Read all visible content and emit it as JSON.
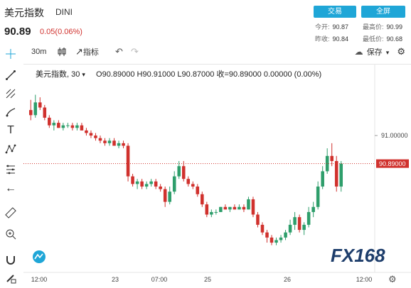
{
  "header": {
    "title": "美元指数",
    "code": "DINI",
    "price": "90.89",
    "change": "0.05(0.06%)",
    "trade_btn": "交易",
    "fullscreen_btn": "全屏",
    "stats": {
      "open_label": "今开:",
      "open": "90.87",
      "high_label": "最高价:",
      "high": "90.99",
      "prev_label": "昨收:",
      "prev": "90.84",
      "low_label": "最低价:",
      "low": "90.68"
    }
  },
  "toolbar": {
    "interval": "30m",
    "indicators": "指标",
    "save": "保存"
  },
  "legend": {
    "symbol": "美元指数, 30",
    "open": "O90.89000",
    "high": "H90.91000",
    "low": "L90.87000",
    "close": "收=90.89000",
    "chg": "0.00000 (0.00%)"
  },
  "icons": [
    "crosshair-icon",
    "line-icon",
    "pitchfork-icon",
    "brush-icon",
    "text-icon",
    "pattern-icon",
    "measure-icon",
    "back-arrow-icon",
    "ruler-icon",
    "zoom-in-icon",
    "magnet-icon",
    "pencil-lock-icon",
    "cloud-icon",
    "candles-icon",
    "undo-icon",
    "redo-icon",
    "gear-icon"
  ],
  "colors": {
    "up": "#2e9e6b",
    "down": "#d0312d",
    "accent": "#1fa6d7",
    "price_line": "#d0312d"
  },
  "watermark": "FX168",
  "chart_data": {
    "type": "candlestick",
    "title": "",
    "y_axis_label": "91.00000",
    "y_axis_value": 91.0,
    "last_price_label": "90.89000",
    "last_price": 90.89,
    "x_ticks": [
      "12:00",
      "23",
      "07:00",
      "25",
      "26",
      "12:00"
    ],
    "ylim": [
      90.48,
      91.22
    ],
    "series": [
      {
        "type": "candles",
        "values": [
          [
            91.1,
            91.14,
            91.06,
            91.08
          ],
          [
            91.08,
            91.16,
            91.07,
            91.13
          ],
          [
            91.13,
            91.15,
            91.1,
            91.11
          ],
          [
            91.11,
            91.12,
            91.06,
            91.07
          ],
          [
            91.07,
            91.08,
            91.03,
            91.04
          ],
          [
            91.04,
            91.06,
            91.02,
            91.05
          ],
          [
            91.05,
            91.06,
            91.03,
            91.03
          ],
          [
            91.03,
            91.05,
            91.02,
            91.04
          ],
          [
            91.04,
            91.05,
            91.03,
            91.04
          ],
          [
            91.04,
            91.05,
            91.02,
            91.03
          ],
          [
            91.03,
            91.05,
            91.02,
            91.04
          ],
          [
            91.04,
            91.05,
            91.02,
            91.02
          ],
          [
            91.02,
            91.03,
            91.0,
            91.01
          ],
          [
            91.01,
            91.02,
            90.99,
            91.0
          ],
          [
            91.0,
            91.01,
            90.98,
            90.99
          ],
          [
            90.99,
            91.0,
            90.97,
            90.98
          ],
          [
            90.98,
            90.99,
            90.96,
            90.97
          ],
          [
            90.97,
            90.99,
            90.96,
            90.98
          ],
          [
            90.98,
            90.99,
            90.96,
            90.96
          ],
          [
            90.96,
            90.98,
            90.95,
            90.97
          ],
          [
            90.97,
            90.98,
            90.95,
            90.96
          ],
          [
            90.96,
            90.97,
            90.82,
            90.84
          ],
          [
            90.84,
            90.85,
            90.8,
            90.81
          ],
          [
            90.81,
            90.83,
            90.79,
            90.82
          ],
          [
            90.82,
            90.83,
            90.79,
            90.8
          ],
          [
            90.8,
            90.82,
            90.79,
            90.81
          ],
          [
            90.81,
            90.83,
            90.8,
            90.82
          ],
          [
            90.82,
            90.83,
            90.79,
            90.8
          ],
          [
            90.8,
            90.81,
            90.78,
            90.79
          ],
          [
            90.79,
            90.8,
            90.72,
            90.74
          ],
          [
            90.74,
            90.8,
            90.73,
            90.78
          ],
          [
            90.78,
            90.86,
            90.77,
            90.84
          ],
          [
            90.84,
            90.9,
            90.83,
            90.88
          ],
          [
            90.88,
            90.9,
            90.82,
            90.83
          ],
          [
            90.83,
            90.84,
            90.8,
            90.81
          ],
          [
            90.81,
            90.82,
            90.79,
            90.8
          ],
          [
            90.8,
            90.81,
            90.76,
            90.77
          ],
          [
            90.77,
            90.78,
            90.72,
            90.73
          ],
          [
            90.73,
            90.74,
            90.68,
            90.69
          ],
          [
            90.69,
            90.71,
            90.68,
            90.7
          ],
          [
            90.7,
            90.71,
            90.69,
            90.7
          ],
          [
            90.7,
            90.72,
            90.7,
            90.72
          ],
          [
            90.72,
            90.73,
            90.71,
            90.71
          ],
          [
            90.71,
            90.72,
            90.7,
            90.72
          ],
          [
            90.72,
            90.73,
            90.71,
            90.71
          ],
          [
            90.71,
            90.73,
            90.71,
            90.72
          ],
          [
            90.72,
            90.73,
            90.7,
            90.71
          ],
          [
            90.71,
            90.76,
            90.71,
            90.75
          ],
          [
            90.75,
            90.76,
            90.68,
            90.69
          ],
          [
            90.69,
            90.7,
            90.64,
            90.65
          ],
          [
            90.65,
            90.66,
            90.61,
            90.62
          ],
          [
            90.62,
            90.63,
            90.58,
            90.6
          ],
          [
            90.6,
            90.61,
            90.57,
            90.58
          ],
          [
            90.58,
            90.6,
            90.57,
            90.59
          ],
          [
            90.59,
            90.61,
            90.58,
            90.6
          ],
          [
            90.6,
            90.63,
            90.59,
            90.62
          ],
          [
            90.62,
            90.67,
            90.61,
            90.65
          ],
          [
            90.65,
            90.7,
            90.63,
            90.68
          ],
          [
            90.68,
            90.69,
            90.62,
            90.63
          ],
          [
            90.63,
            90.66,
            90.61,
            90.65
          ],
          [
            90.65,
            90.72,
            90.64,
            90.7
          ],
          [
            90.7,
            90.74,
            90.68,
            90.72
          ],
          [
            90.72,
            90.82,
            90.71,
            90.8
          ],
          [
            90.8,
            90.88,
            90.79,
            90.86
          ],
          [
            90.86,
            90.95,
            90.85,
            90.92
          ],
          [
            90.92,
            90.97,
            90.88,
            90.9
          ],
          [
            90.9,
            90.92,
            90.78,
            90.8
          ],
          [
            90.8,
            90.9,
            90.78,
            90.89
          ]
        ]
      }
    ]
  }
}
